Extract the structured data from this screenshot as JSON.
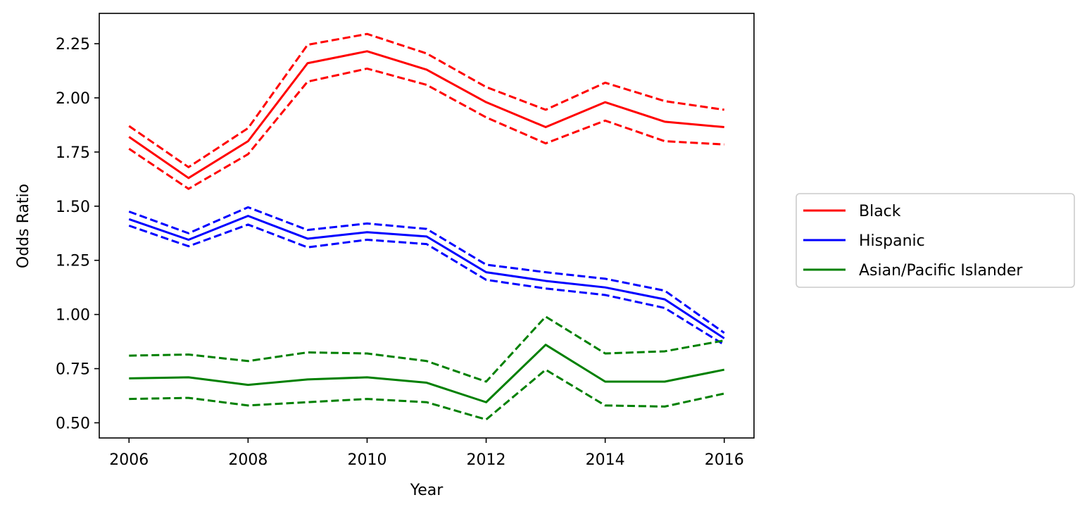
{
  "chart_data": {
    "type": "line",
    "title": "",
    "xlabel": "Year",
    "ylabel": "Odds Ratio",
    "xlim": [
      2005.5,
      2016.5
    ],
    "ylim": [
      0.43,
      2.39
    ],
    "x": [
      2006,
      2007,
      2008,
      2009,
      2010,
      2011,
      2012,
      2013,
      2014,
      2015,
      2016
    ],
    "xticks": [
      2006,
      2008,
      2010,
      2012,
      2014,
      2016
    ],
    "xtick_labels": [
      "2006",
      "2008",
      "2010",
      "2012",
      "2014",
      "2016"
    ],
    "yticks": [
      0.5,
      0.75,
      1.0,
      1.25,
      1.5,
      1.75,
      2.0,
      2.25
    ],
    "ytick_labels": [
      "0.50",
      "0.75",
      "1.00",
      "1.25",
      "1.50",
      "1.75",
      "2.00",
      "2.25"
    ],
    "grid": false,
    "legend_position": "right",
    "series": [
      {
        "name": "Black",
        "color": "#ff0000",
        "values": [
          1.82,
          1.63,
          1.8,
          2.16,
          2.215,
          2.13,
          1.98,
          1.865,
          1.98,
          1.89,
          1.865
        ],
        "upper": [
          1.87,
          1.68,
          1.86,
          2.245,
          2.295,
          2.205,
          2.05,
          1.945,
          2.07,
          1.985,
          1.945
        ],
        "lower": [
          1.765,
          1.58,
          1.74,
          2.075,
          2.135,
          2.06,
          1.91,
          1.79,
          1.895,
          1.8,
          1.785
        ]
      },
      {
        "name": "Hispanic",
        "color": "#0000ff",
        "values": [
          1.44,
          1.345,
          1.455,
          1.35,
          1.38,
          1.36,
          1.195,
          1.155,
          1.125,
          1.07,
          0.89
        ],
        "upper": [
          1.475,
          1.375,
          1.495,
          1.39,
          1.42,
          1.395,
          1.23,
          1.195,
          1.165,
          1.11,
          0.915
        ],
        "lower": [
          1.41,
          1.315,
          1.415,
          1.31,
          1.345,
          1.325,
          1.16,
          1.12,
          1.09,
          1.03,
          0.86
        ]
      },
      {
        "name": "Asian/Pacific Islander",
        "color": "#008000",
        "values": [
          0.705,
          0.71,
          0.675,
          0.7,
          0.71,
          0.685,
          0.595,
          0.86,
          0.69,
          0.69,
          0.745
        ],
        "upper": [
          0.81,
          0.815,
          0.785,
          0.825,
          0.82,
          0.785,
          0.69,
          0.99,
          0.82,
          0.83,
          0.88
        ],
        "lower": [
          0.61,
          0.615,
          0.58,
          0.595,
          0.61,
          0.595,
          0.515,
          0.745,
          0.58,
          0.575,
          0.635
        ]
      }
    ]
  }
}
